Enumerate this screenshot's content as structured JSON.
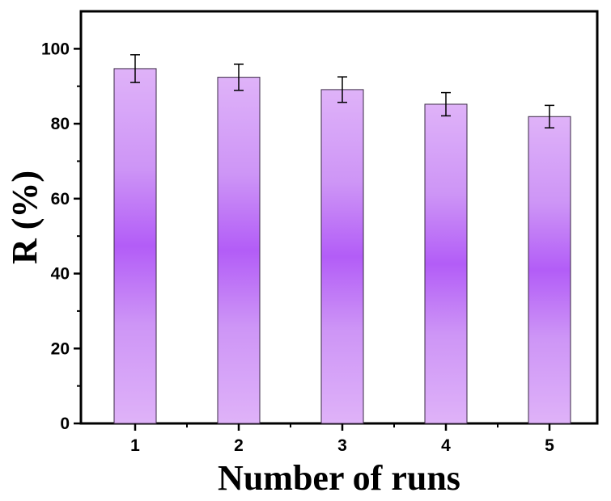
{
  "chart_data": {
    "type": "bar",
    "categories": [
      "1",
      "2",
      "3",
      "4",
      "5"
    ],
    "values": [
      94.7,
      92.4,
      89.1,
      85.2,
      81.9
    ],
    "errors": [
      3.7,
      3.5,
      3.4,
      3.1,
      3.0
    ],
    "xlabel": "Number of runs",
    "ylabel": "R (%)",
    "ylim": [
      0,
      110
    ],
    "yticks": [
      0,
      20,
      40,
      60,
      80,
      100
    ],
    "grid": false,
    "colors": {
      "bar_edge": "#c9a3e3",
      "bar_light": "#dfb3f8",
      "bar_mid": "#c486f5",
      "bar_center": "#9b30f6",
      "axis": "#000000"
    }
  }
}
